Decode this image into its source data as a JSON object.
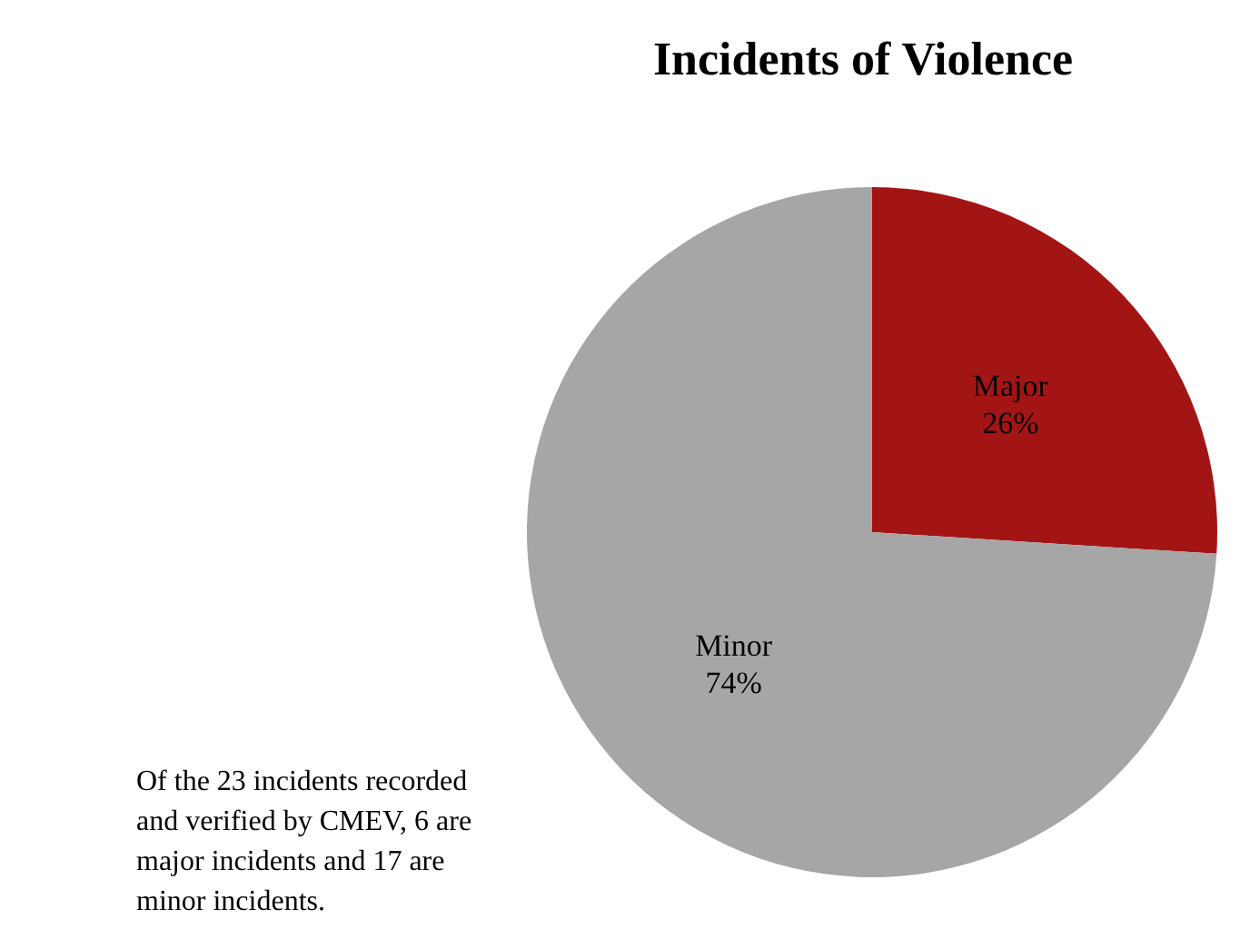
{
  "chart_data": {
    "type": "pie",
    "title": "Incidents of Violence",
    "categories": [
      "Major",
      "Minor"
    ],
    "values": [
      26,
      74
    ],
    "colors": [
      "#a31515",
      "#a6a6a6"
    ],
    "value_labels": [
      "26%",
      "74%"
    ],
    "annotations": [
      "Of the 23 incidents recorded and verified by CMEV, 6 are major incidents and 17 are minor incidents."
    ]
  }
}
